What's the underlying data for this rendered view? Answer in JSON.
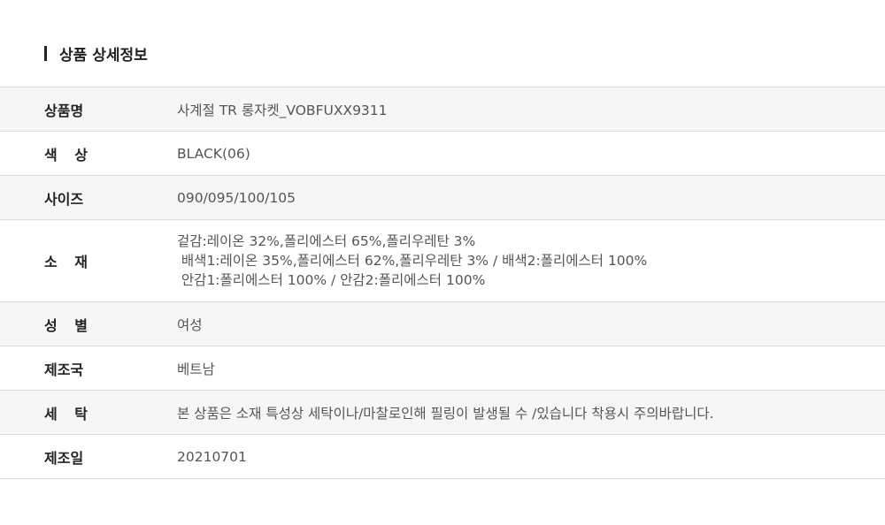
{
  "section_title": "상품 상세정보",
  "rows": [
    {
      "label": "상품명",
      "value": "사계절 TR 롱자켓_VOBFUXX9311"
    },
    {
      "label": "색 상",
      "value": "BLACK(06)"
    },
    {
      "label": "사이즈",
      "value": "090/095/100/105"
    },
    {
      "label": "소 재",
      "lines": [
        "겉감:레이온 32%,폴리에스터 65%,폴리우레탄 3%",
        " 배색1:레이온 35%,폴리에스터 62%,폴리우레탄 3% / 배색2:폴리에스터 100%",
        " 안감1:폴리에스터 100% / 안감2:폴리에스터 100%"
      ]
    },
    {
      "label": "성 별",
      "value": "여성"
    },
    {
      "label": "제조국",
      "value": "베트남"
    },
    {
      "label": "세 탁",
      "value": "본 상품은 소재 특성상 세탁이나/마찰로인해 필링이 발생될 수 /있습니다 착용시 주의바랍니다."
    },
    {
      "label": "제조일",
      "value": "20210701"
    }
  ]
}
